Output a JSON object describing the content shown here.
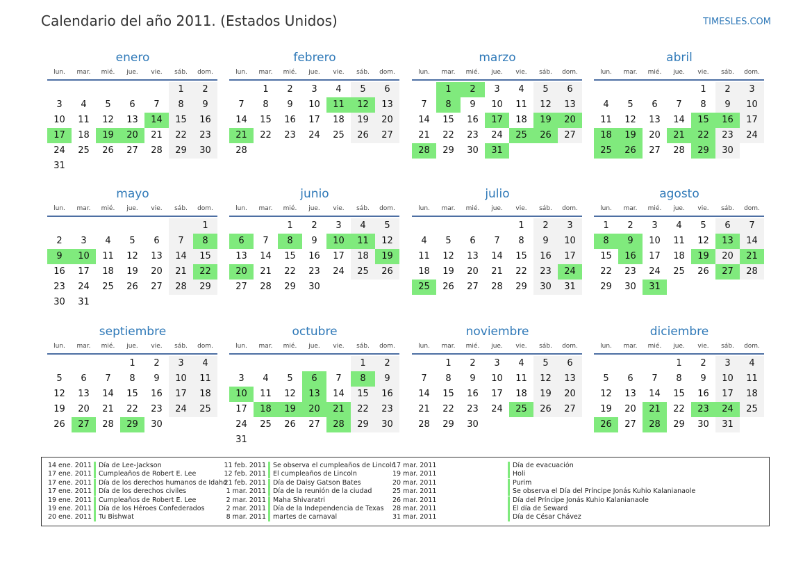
{
  "header": {
    "title": "Calendario del año 2011. (Estados Unidos)",
    "site": "TIMESLES.COM"
  },
  "weekdays": [
    "lun.",
    "mar.",
    "mié.",
    "jue.",
    "vie.",
    "sáb.",
    "dom."
  ],
  "months": [
    {
      "name": "enero",
      "offset": 5,
      "days": 31,
      "holidays": [
        14,
        17,
        19,
        20
      ]
    },
    {
      "name": "febrero",
      "offset": 1,
      "days": 28,
      "holidays": [
        11,
        12,
        21
      ]
    },
    {
      "name": "marzo",
      "offset": 1,
      "days": 31,
      "holidays": [
        1,
        2,
        8,
        17,
        19,
        20,
        25,
        26,
        28,
        31
      ]
    },
    {
      "name": "abril",
      "offset": 4,
      "days": 30,
      "holidays": [
        15,
        16,
        18,
        19,
        21,
        22,
        25,
        26,
        29
      ]
    },
    {
      "name": "mayo",
      "offset": 6,
      "days": 31,
      "holidays": [
        8,
        9,
        10,
        22
      ]
    },
    {
      "name": "junio",
      "offset": 2,
      "days": 30,
      "holidays": [
        6,
        8,
        10,
        11,
        19,
        20
      ]
    },
    {
      "name": "julio",
      "offset": 4,
      "days": 31,
      "holidays": [
        24,
        25
      ]
    },
    {
      "name": "agosto",
      "offset": 0,
      "days": 31,
      "holidays": [
        8,
        9,
        13,
        16,
        19,
        21,
        27,
        31
      ]
    },
    {
      "name": "septiembre",
      "offset": 3,
      "days": 30,
      "holidays": [
        27,
        29
      ]
    },
    {
      "name": "octubre",
      "offset": 5,
      "days": 31,
      "holidays": [
        6,
        8,
        10,
        13,
        18,
        19,
        20,
        21,
        28
      ]
    },
    {
      "name": "noviembre",
      "offset": 1,
      "days": 30,
      "holidays": [
        25
      ]
    },
    {
      "name": "diciembre",
      "offset": 3,
      "days": 31,
      "holidays": [
        21,
        23,
        24,
        26,
        28
      ]
    }
  ],
  "legend": [
    [
      {
        "date": "14 ene. 2011",
        "name": "Día de Lee-Jackson"
      },
      {
        "date": "17 ene. 2011",
        "name": "Cumpleaños de Robert E. Lee"
      },
      {
        "date": "17 ene. 2011",
        "name": "Día de los derechos humanos de Idaho"
      },
      {
        "date": "17 ene. 2011",
        "name": "Día de los derechos civiles"
      },
      {
        "date": "19 ene. 2011",
        "name": "Cumpleaños de Robert E. Lee"
      },
      {
        "date": "19 ene. 2011",
        "name": "Día de los Héroes Confederados"
      },
      {
        "date": "20 ene. 2011",
        "name": "Tu Bishwat"
      }
    ],
    [
      {
        "date": "11 feb. 2011",
        "name": "Se observa el cumpleaños de Lincoln"
      },
      {
        "date": "12 feb. 2011",
        "name": "El cumpleaños de Lincoln"
      },
      {
        "date": "21 feb. 2011",
        "name": "Día de Daisy Gatson Bates"
      },
      {
        "date": "1 mar. 2011",
        "name": "Día de la reunión de la ciudad"
      },
      {
        "date": "2 mar. 2011",
        "name": "Maha Shivaratri"
      },
      {
        "date": "2 mar. 2011",
        "name": "Día de la Independencia de Texas"
      },
      {
        "date": "8 mar. 2011",
        "name": "martes de carnaval"
      }
    ],
    [
      {
        "date": "17 mar. 2011",
        "name": "Día de evacuación"
      },
      {
        "date": "19 mar. 2011",
        "name": "Holi"
      },
      {
        "date": "20 mar. 2011",
        "name": "Purim"
      },
      {
        "date": "25 mar. 2011",
        "name": "Se observa el Día del Príncipe Jonás Kuhio Kalanianaole"
      },
      {
        "date": "26 mar. 2011",
        "name": "Día del Príncipe Jonás Kuhio Kalanianaole"
      },
      {
        "date": "28 mar. 2011",
        "name": "El día de Seward"
      },
      {
        "date": "31 mar. 2011",
        "name": "Día de César Chávez"
      }
    ]
  ]
}
